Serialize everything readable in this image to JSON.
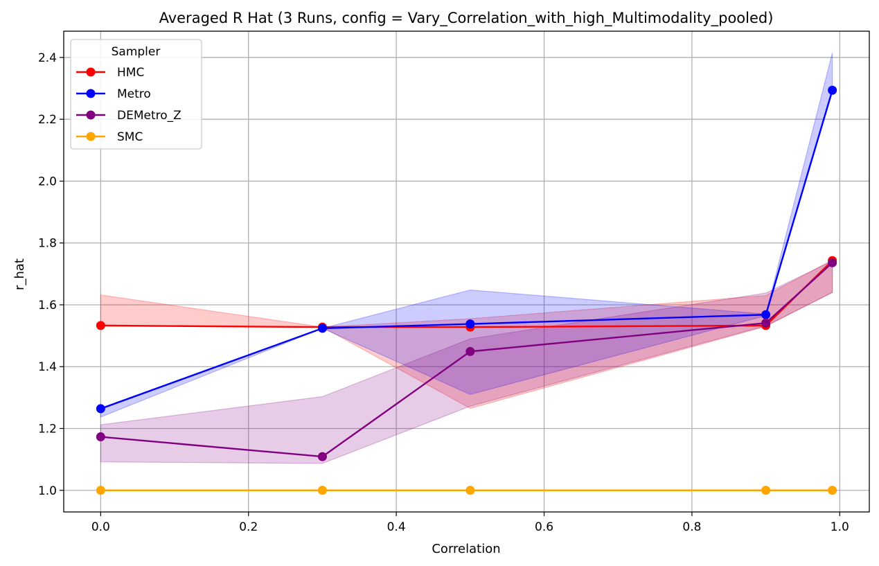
{
  "chart_data": {
    "type": "line",
    "title": "Averaged R Hat (3 Runs, config = Vary_Correlation_with_high_Multimodality_pooled)",
    "xlabel": "Correlation",
    "ylabel": "r_hat",
    "xlim": [
      -0.05,
      1.04
    ],
    "ylim": [
      0.93,
      2.485
    ],
    "xticks": [
      0.0,
      0.2,
      0.4,
      0.6,
      0.8,
      1.0
    ],
    "xtick_labels": [
      "0.0",
      "0.2",
      "0.4",
      "0.6",
      "0.8",
      "1.0"
    ],
    "yticks": [
      1.0,
      1.2,
      1.4,
      1.6,
      1.8,
      2.0,
      2.2,
      2.4
    ],
    "ytick_labels": [
      "1.0",
      "1.2",
      "1.4",
      "1.6",
      "1.8",
      "2.0",
      "2.2",
      "2.4"
    ],
    "grid": true,
    "legend": {
      "title": "Sampler",
      "placement": "top-left"
    },
    "x": [
      0.0,
      0.3,
      0.5,
      0.9,
      0.99
    ],
    "series": [
      {
        "name": "HMC",
        "color": "#ff0000",
        "values": [
          1.533,
          1.528,
          1.528,
          1.533,
          1.743
        ],
        "lower": [
          1.533,
          1.528,
          1.265,
          1.53,
          1.64
        ],
        "upper": [
          1.632,
          1.528,
          1.555,
          1.63,
          1.745
        ]
      },
      {
        "name": "Metro",
        "color": "#0000ff",
        "values": [
          1.264,
          1.524,
          1.538,
          1.568,
          2.294
        ],
        "lower": [
          1.237,
          1.524,
          1.31,
          1.565,
          2.287
        ],
        "upper": [
          1.264,
          1.524,
          1.648,
          1.57,
          2.415
        ]
      },
      {
        "name": "DEMetro_Z",
        "color": "#800080",
        "values": [
          1.173,
          1.109,
          1.449,
          1.541,
          1.736
        ],
        "lower": [
          1.092,
          1.087,
          1.272,
          1.532,
          1.64
        ],
        "upper": [
          1.212,
          1.303,
          1.49,
          1.638,
          1.742
        ]
      },
      {
        "name": "SMC",
        "color": "#ffa500",
        "values": [
          1.0,
          1.0,
          1.0,
          1.0,
          1.0
        ],
        "lower": [
          1.0,
          1.0,
          1.0,
          1.0,
          1.0
        ],
        "upper": [
          1.0,
          1.0,
          1.0,
          1.0,
          1.0
        ]
      }
    ]
  }
}
